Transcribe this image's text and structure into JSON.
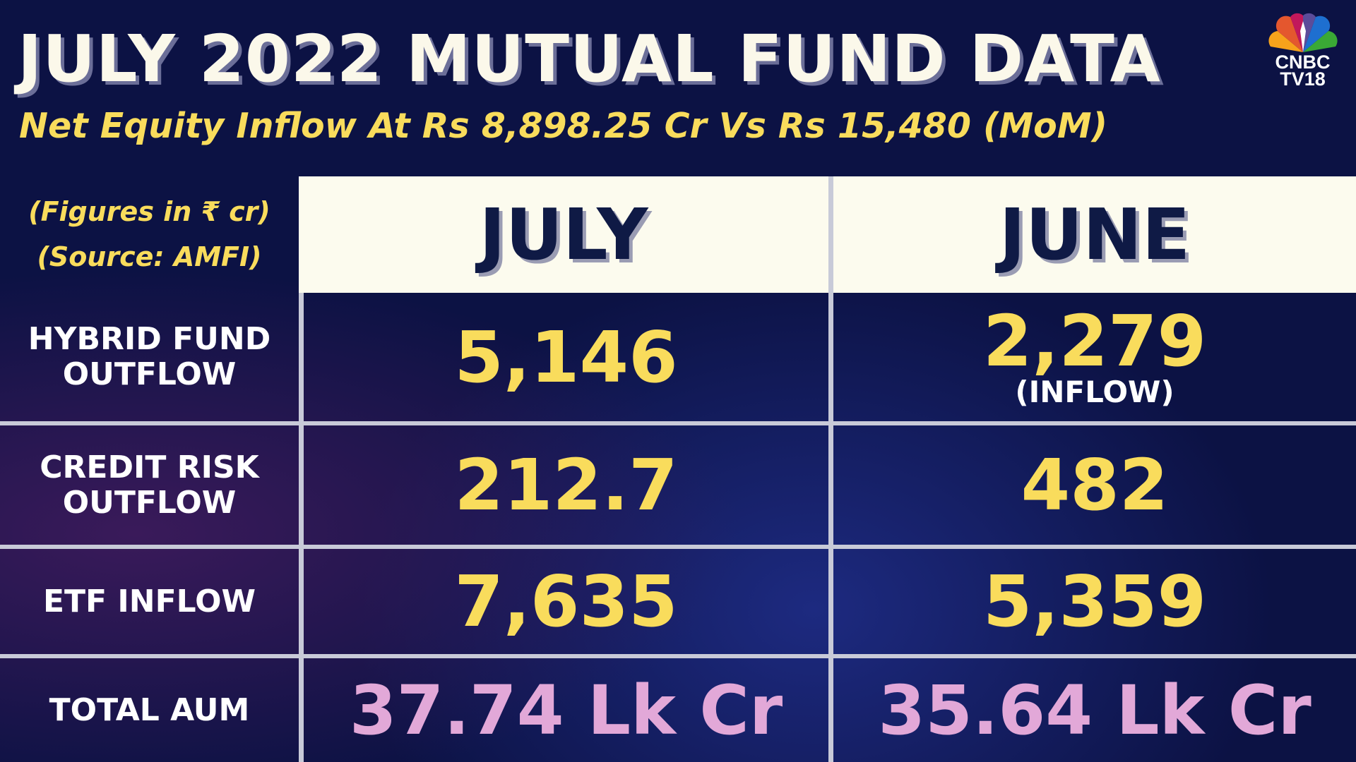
{
  "title": "JULY 2022 MUTUAL FUND DATA",
  "subtitle": "Net Equity Inflow At Rs 8,898.25 Cr Vs Rs 15,480 (MoM)",
  "logo": {
    "line1": "CNBC",
    "line2": "TV18"
  },
  "notes": {
    "figures": "(Figures in ₹ cr)",
    "source": "(Source: AMFI)"
  },
  "columns": [
    "JULY",
    "JUNE"
  ],
  "rows": [
    {
      "label": "HYBRID FUND OUTFLOW",
      "july": "5,146",
      "june": "2,279",
      "june_note": "(INFLOW)"
    },
    {
      "label": "CREDIT RISK OUTFLOW",
      "july": "212.7",
      "june": "482"
    },
    {
      "label": "ETF INFLOW",
      "july": "7,635",
      "june": "5,359"
    },
    {
      "label": "TOTAL AUM",
      "july": "37.74 Lk Cr",
      "june": "35.64 Lk Cr"
    }
  ]
}
